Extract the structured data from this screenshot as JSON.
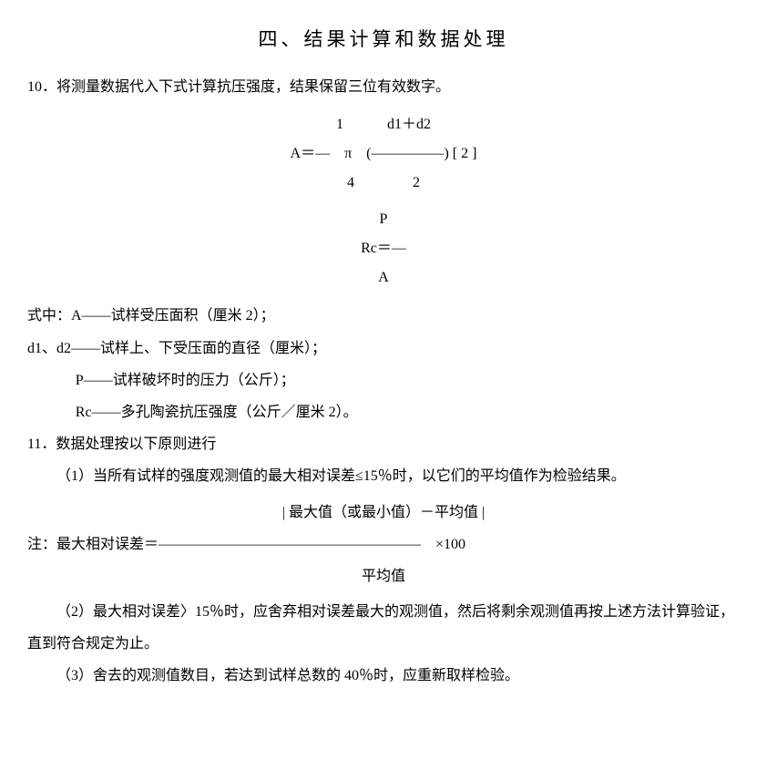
{
  "title": "四、结果计算和数据处理",
  "item10": {
    "label": "10．",
    "text": "将测量数据代入下式计算抗压强度，结果保留三位有效数字。"
  },
  "formula1": {
    "line1": "1　　　d1＋d2",
    "line2": "A＝—　π　(—————)  [ 2 ]",
    "line3": "4　　　　2"
  },
  "formula2": {
    "line1": "P",
    "line2": "Rc＝—",
    "line3": "A"
  },
  "defs": {
    "lead": "式中：",
    "a": "A——试样受压面积（厘米 2）；",
    "d": "d1、d2——试样上、下受压面的直径（厘米）；",
    "p": "P——试样破坏时的压力（公斤）；",
    "rc": "Rc——多孔陶瓷抗压强度（公斤／厘米 2）。"
  },
  "item11": {
    "label": "11．",
    "text": "数据处理按以下原则进行"
  },
  "rule1": "（1）当所有试样的强度观测值的最大相对误差≤15％时，以它们的平均值作为检验结果。",
  "formula3": {
    "line1": "| 最大值（或最小值）－平均值 |",
    "lead": "注：最大相对误差＝",
    "bar": "——————————————————",
    "tail": "　×100",
    "line3": "平均值"
  },
  "rule2": "（2）最大相对误差〉15％时，应舍弃相对误差最大的观测值，然后将剩余观测值再按上述方法计算验证，直到符合规定为止。",
  "rule3": "（3）舍去的观测值数目，若达到试样总数的 40％时，应重新取样检验。"
}
